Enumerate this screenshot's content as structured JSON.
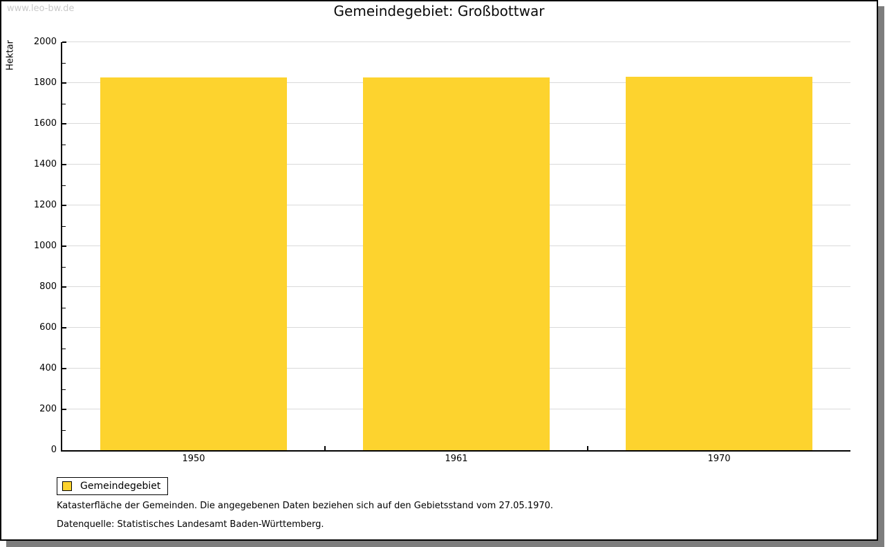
{
  "watermark": "www.leo-bw.de",
  "title": "Gemeindegebiet: Großbottwar",
  "chart_data": {
    "type": "bar",
    "title": "Gemeindegebiet: Großbottwar",
    "categories": [
      "1950",
      "1961",
      "1970"
    ],
    "series": [
      {
        "name": "Gemeindegebiet",
        "color": "#FDD32E",
        "values": [
          1826,
          1826,
          1829
        ]
      }
    ],
    "xlabel": "",
    "ylabel": "Hektar",
    "ylim": [
      0,
      2000
    ],
    "ytick_major_step": 200,
    "ytick_minor_step": 100,
    "grid": true,
    "legend_position": "bottom-left"
  },
  "legend": {
    "items": [
      {
        "label": "Gemeindegebiet",
        "color": "#FDD32E"
      }
    ]
  },
  "footer": {
    "line1": "Katasterfläche der Gemeinden. Die angegebenen Daten beziehen sich auf den Gebietsstand vom 27.05.1970.",
    "line2": "Datenquelle: Statistisches Landesamt Baden-Württemberg."
  },
  "colors": {
    "bar": "#FDD32E",
    "gridline": "#d9d9d9",
    "axis": "#000000",
    "watermark": "#c9c9c9",
    "frame_shadow": "#7d7d7d"
  }
}
